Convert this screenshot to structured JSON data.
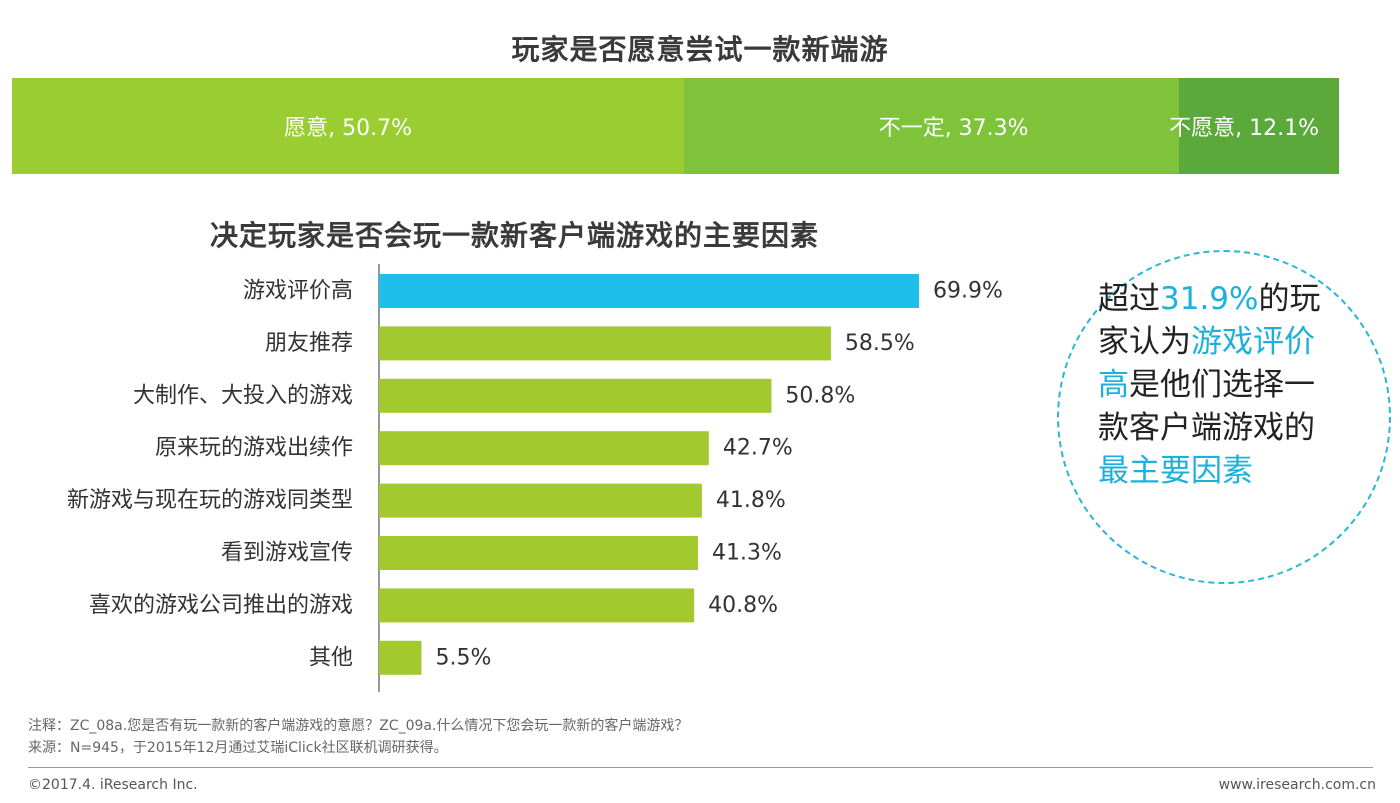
{
  "colors": {
    "seg_willing": "#9acd32",
    "seg_unsure": "#7ec33a",
    "seg_unwilling": "#5aa93a",
    "bar_green": "#a2ca2e",
    "bar_blue": "#1ec0ea",
    "axis": "#777777",
    "highlight": "#1cb1dc"
  },
  "header": {
    "title": "玩家是否愿意尝试一款新端游"
  },
  "stacked": [
    {
      "label": "愿意, 50.7%",
      "value": 50.7
    },
    {
      "label": "不一定, 37.3%",
      "value": 37.3
    },
    {
      "label": "不愿意, 12.1%",
      "value": 12.1
    }
  ],
  "bar_title": "决定玩家是否会玩一款新客户端游戏的主要因素",
  "chart_data": [
    {
      "type": "bar",
      "orientation": "horizontal",
      "stacked": true,
      "title": "玩家是否愿意尝试一款新端游",
      "categories": [
        "愿意",
        "不一定",
        "不愿意"
      ],
      "values": [
        50.7,
        37.3,
        12.1
      ],
      "unit": "%"
    },
    {
      "type": "bar",
      "orientation": "horizontal",
      "title": "决定玩家是否会玩一款新客户端游戏的主要因素",
      "categories": [
        "游戏评价高",
        "朋友推荐",
        "大制作、大投入的游戏",
        "原来玩的游戏出续作",
        "新游戏与现在玩的游戏同类型",
        "看到游戏宣传",
        "喜欢的游戏公司推出的游戏",
        "其他"
      ],
      "values": [
        69.9,
        58.5,
        50.8,
        42.7,
        41.8,
        41.3,
        40.8,
        5.5
      ],
      "value_labels": [
        "69.9%",
        "58.5%",
        "50.8%",
        "42.7%",
        "41.8%",
        "41.3%",
        "40.8%",
        "5.5%"
      ],
      "highlight_index": 0,
      "xlim": [
        0,
        100
      ],
      "grid": false
    }
  ],
  "callout": {
    "t1": "超过",
    "h1": "31.9%",
    "t2": "的玩家认为",
    "h2": "游戏评价高",
    "t3": "是他们选择一款客户端游戏的",
    "h3": "最主要因素"
  },
  "notes": {
    "line1": "注释：ZC_08a.您是否有玩一款新的客户端游戏的意愿？ZC_09a.什么情况下您会玩一款新的客户端游戏？",
    "line2": "来源：N=945，于2015年12月通过艾瑞iClick社区联机调研获得。"
  },
  "footer": {
    "copyright": "©2017.4. iResearch Inc.",
    "website": "www.iresearch.com.cn"
  }
}
